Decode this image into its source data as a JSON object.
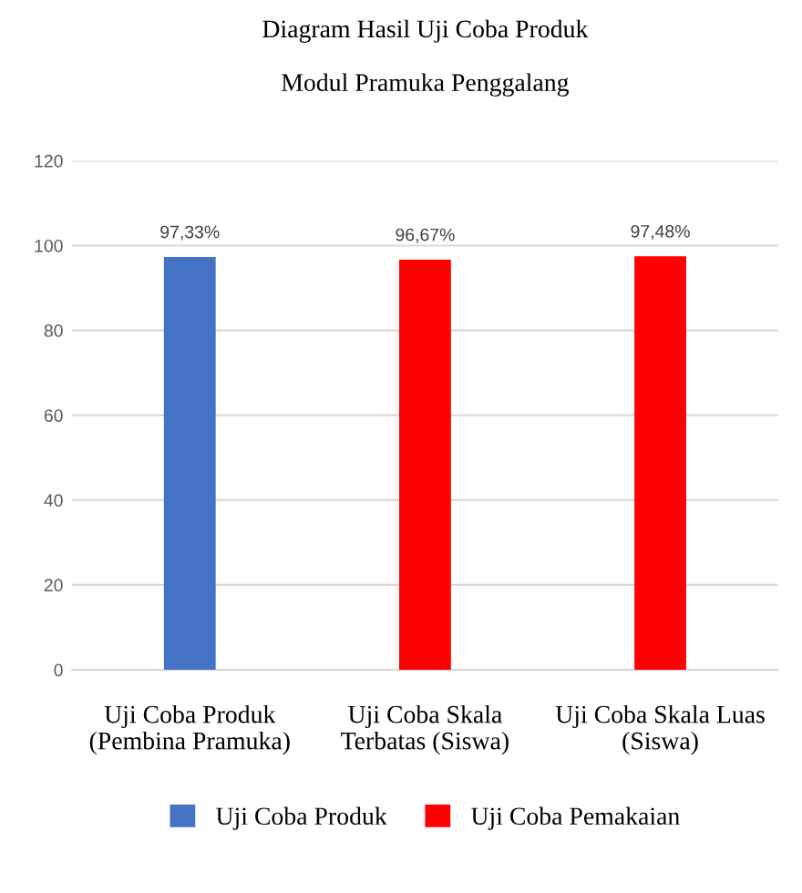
{
  "chart_data": {
    "type": "bar",
    "title": "Diagram Hasil Uji Coba Produk",
    "subtitle": "Modul Pramuka Penggalang",
    "categories": [
      "Uji Coba Produk\n(Pembina Pramuka)",
      "Uji Coba Skala\nTerbatas (Siswa)",
      "Uji Coba Skala Luas\n(Siswa)"
    ],
    "series": [
      {
        "name": "Uji Coba Produk",
        "color": "#4472c4",
        "values": [
          97.33,
          null,
          null
        ],
        "value_labels": [
          "97,33%",
          null,
          null
        ]
      },
      {
        "name": "Uji Coba Pemakaian",
        "color": "#ff0000",
        "values": [
          null,
          96.67,
          97.48
        ],
        "value_labels": [
          null,
          "96,67%",
          "97,48%"
        ]
      }
    ],
    "ylim": [
      0,
      120
    ],
    "yticks": [
      0,
      20,
      40,
      60,
      80,
      100,
      120
    ],
    "grid": "y",
    "legend": "bottom"
  }
}
